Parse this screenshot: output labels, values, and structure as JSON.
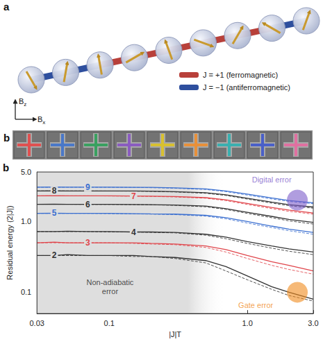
{
  "diagram": {
    "panel": "a",
    "field_axes": [
      {
        "symbol": "B",
        "subscript": "z"
      },
      {
        "symbol": "B",
        "subscript": "x"
      }
    ],
    "bond_key": [
      {
        "J": 1,
        "text": "J = +1 (ferromagnetic)",
        "color": "#b8403a"
      },
      {
        "J": -1,
        "text": "J = −1 (antiferromagnetic)",
        "color": "#2e4f9e"
      }
    ],
    "bonds": [
      -1,
      -1,
      1,
      1,
      1,
      1,
      1,
      -1
    ],
    "spin_angles": [
      -60,
      80,
      100,
      30,
      110,
      -20,
      60,
      150,
      70
    ]
  },
  "device": {
    "panel": "b",
    "qubit_colors": [
      "#e05050",
      "#4a78c8",
      "#3aa060",
      "#8a5cc0",
      "#d8c030",
      "#e8903a",
      "#3ab0b0",
      "#4a60c8",
      "#e070a0"
    ]
  },
  "chart_data": {
    "type": "line",
    "panel_label": "b",
    "x_label": "|J|T",
    "y_label": "Residual energy (2|J|)",
    "log": true,
    "grid": false,
    "xlim": [
      0.03,
      3.0
    ],
    "xticks": [
      0.03,
      0.1,
      {
        "value": 1,
        "label": "1.0"
      },
      {
        "value": 3,
        "label": "3.0"
      }
    ],
    "ylim": [
      0.05,
      5.0
    ],
    "yticks": [
      0.1,
      {
        "value": 1,
        "label": "1.0"
      },
      {
        "value": 5,
        "label": "5.0"
      }
    ],
    "x": [
      0.03,
      0.04,
      0.05,
      0.07,
      0.1,
      0.15,
      0.2,
      0.3,
      0.5,
      0.7,
      1.0,
      1.5,
      2.0,
      3.0
    ],
    "series": [
      {
        "label": "2",
        "color": "#333333",
        "values": [
          0.33,
          0.33,
          0.34,
          0.33,
          0.33,
          0.33,
          0.32,
          0.31,
          0.28,
          0.23,
          0.17,
          0.12,
          0.1,
          0.08
        ],
        "simulated": [
          0.33,
          0.33,
          0.33,
          0.33,
          0.33,
          0.32,
          0.32,
          0.3,
          0.26,
          0.2,
          0.15,
          0.11,
          0.09,
          0.075
        ]
      },
      {
        "label": "3",
        "color": "#e0454b",
        "values": [
          0.5,
          0.51,
          0.5,
          0.5,
          0.5,
          0.5,
          0.49,
          0.48,
          0.45,
          0.4,
          0.33,
          0.27,
          0.24,
          0.2
        ],
        "simulated": [
          0.5,
          0.5,
          0.5,
          0.5,
          0.5,
          0.49,
          0.48,
          0.47,
          0.43,
          0.37,
          0.3,
          0.24,
          0.21,
          0.18
        ]
      },
      {
        "label": "4",
        "color": "#333333",
        "values": [
          0.72,
          0.72,
          0.73,
          0.72,
          0.72,
          0.71,
          0.71,
          0.7,
          0.66,
          0.6,
          0.52,
          0.45,
          0.41,
          0.37
        ],
        "simulated": [
          0.72,
          0.72,
          0.72,
          0.72,
          0.71,
          0.71,
          0.7,
          0.69,
          0.64,
          0.57,
          0.49,
          0.42,
          0.38,
          0.34
        ]
      },
      {
        "label": "5",
        "color": "#3b6fd0",
        "values": [
          1.3,
          1.31,
          1.3,
          1.3,
          1.3,
          1.29,
          1.28,
          1.27,
          1.22,
          1.13,
          1.0,
          0.86,
          0.78,
          0.7
        ],
        "simulated": [
          1.3,
          1.3,
          1.3,
          1.3,
          1.29,
          1.28,
          1.27,
          1.25,
          1.19,
          1.09,
          0.95,
          0.82,
          0.74,
          0.66
        ]
      },
      {
        "label": "6",
        "color": "#333333",
        "values": [
          1.75,
          1.76,
          1.75,
          1.75,
          1.75,
          1.74,
          1.73,
          1.71,
          1.65,
          1.52,
          1.35,
          1.18,
          1.07,
          0.97
        ],
        "simulated": [
          1.75,
          1.75,
          1.75,
          1.74,
          1.74,
          1.73,
          1.72,
          1.69,
          1.61,
          1.48,
          1.3,
          1.13,
          1.02,
          0.92
        ]
      },
      {
        "label": "7",
        "color": "#e0454b",
        "values": [
          2.3,
          2.31,
          2.3,
          2.3,
          2.3,
          2.29,
          2.28,
          2.25,
          2.17,
          2.02,
          1.8,
          1.58,
          1.45,
          1.32
        ],
        "simulated": [
          2.3,
          2.3,
          2.3,
          2.3,
          2.29,
          2.28,
          2.26,
          2.22,
          2.13,
          1.97,
          1.74,
          1.52,
          1.39,
          1.27
        ]
      },
      {
        "label": "8",
        "color": "#333333",
        "values": [
          2.7,
          2.71,
          2.7,
          2.7,
          2.7,
          2.69,
          2.68,
          2.64,
          2.55,
          2.38,
          2.13,
          1.88,
          1.73,
          1.6
        ],
        "simulated": [
          2.7,
          2.7,
          2.7,
          2.7,
          2.69,
          2.68,
          2.66,
          2.61,
          2.5,
          2.33,
          2.07,
          1.82,
          1.67,
          1.54
        ]
      },
      {
        "label": "9",
        "color": "#3b6fd0",
        "values": [
          3.05,
          3.06,
          3.05,
          3.05,
          3.05,
          3.04,
          3.03,
          2.98,
          2.88,
          2.7,
          2.43,
          2.15,
          1.98,
          1.84
        ],
        "simulated": [
          3.05,
          3.05,
          3.05,
          3.05,
          3.04,
          3.03,
          3.0,
          2.95,
          2.83,
          2.64,
          2.36,
          2.08,
          1.92,
          1.78
        ]
      }
    ],
    "shaded_region": {
      "x": [
        0.03,
        0.7
      ],
      "label": "Non-adiabatic error",
      "color": "#dedede"
    },
    "annotations": [
      {
        "text": "Digital error",
        "color": "#7b5cc9"
      },
      {
        "text": "Gate error",
        "color": "#f08a1c"
      }
    ]
  }
}
